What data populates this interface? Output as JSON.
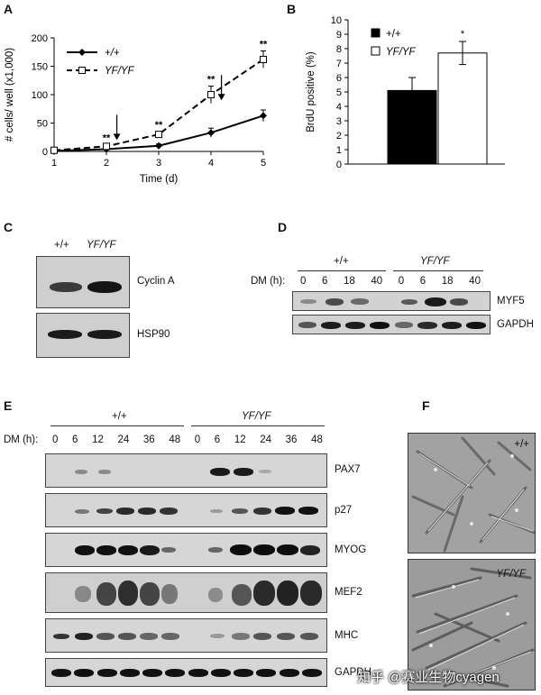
{
  "panels": [
    "A",
    "B",
    "C",
    "D",
    "E",
    "F"
  ],
  "panel_a": {
    "chart_data": {
      "type": "line",
      "xlabel": "Time (d)",
      "ylabel": "# cells/ well (x1,000)",
      "x": [
        1,
        2,
        3,
        4,
        5
      ],
      "xlim": [
        1,
        5
      ],
      "ylim": [
        0,
        200
      ],
      "x_ticks": [
        "1",
        "2",
        "3",
        "4",
        "5"
      ],
      "y_ticks": [
        "0",
        "50",
        "100",
        "150",
        "200"
      ],
      "legend_position": "top-left",
      "series": [
        {
          "name": "+/+",
          "marker": "filled-diamond",
          "style": "solid",
          "values": [
            1,
            4,
            10,
            33,
            63
          ],
          "errors": [
            1,
            2,
            3,
            8,
            10
          ]
        },
        {
          "name": "YF/YF",
          "marker": "open-square",
          "style": "dashed",
          "values": [
            2,
            9,
            30,
            100,
            162
          ],
          "errors": [
            2,
            3,
            5,
            15,
            15
          ]
        }
      ],
      "significance": [
        {
          "x": 2,
          "label": "**"
        },
        {
          "x": 3,
          "label": "**"
        },
        {
          "x": 4,
          "label": "**"
        },
        {
          "x": 5,
          "label": "**"
        }
      ],
      "arrows_at_x": [
        2.2,
        4.2
      ]
    }
  },
  "panel_b": {
    "chart_data": {
      "type": "bar",
      "ylabel": "BrdU positive (%)",
      "categories": [
        "+/+",
        "YF/YF"
      ],
      "values": [
        5.1,
        7.7
      ],
      "errors": [
        0.9,
        0.8
      ],
      "colors": [
        "#000000",
        "#ffffff"
      ],
      "ylim": [
        0,
        10
      ],
      "y_ticks": [
        "0",
        "1",
        "2",
        "3",
        "4",
        "5",
        "6",
        "7",
        "8",
        "9",
        "10"
      ],
      "legend_position": "top-left",
      "significance": [
        {
          "category": "YF/YF",
          "label": "*"
        }
      ]
    }
  },
  "panel_c": {
    "headers": [
      "+/+",
      "YF/YF"
    ],
    "rows": [
      "Cyclin A",
      "HSP90"
    ]
  },
  "panel_d": {
    "groups": [
      "+/+",
      "YF/YF"
    ],
    "dm_label": "DM (h):",
    "times": [
      "0",
      "6",
      "18",
      "40",
      "0",
      "6",
      "18",
      "40"
    ],
    "rows": [
      "MYF5",
      "GAPDH"
    ]
  },
  "panel_e": {
    "groups": [
      "+/+",
      "YF/YF"
    ],
    "dm_label": "DM (h):",
    "times": [
      "0",
      "6",
      "12",
      "24",
      "36",
      "48",
      "0",
      "6",
      "12",
      "24",
      "36",
      "48"
    ],
    "rows": [
      "PAX7",
      "p27",
      "MYOG",
      "MEF2",
      "MHC",
      "GAPDH"
    ]
  },
  "panel_f": {
    "labels": [
      "+/+",
      "YF/YF"
    ]
  },
  "watermark": "知乎 @赛业生物cyagen"
}
